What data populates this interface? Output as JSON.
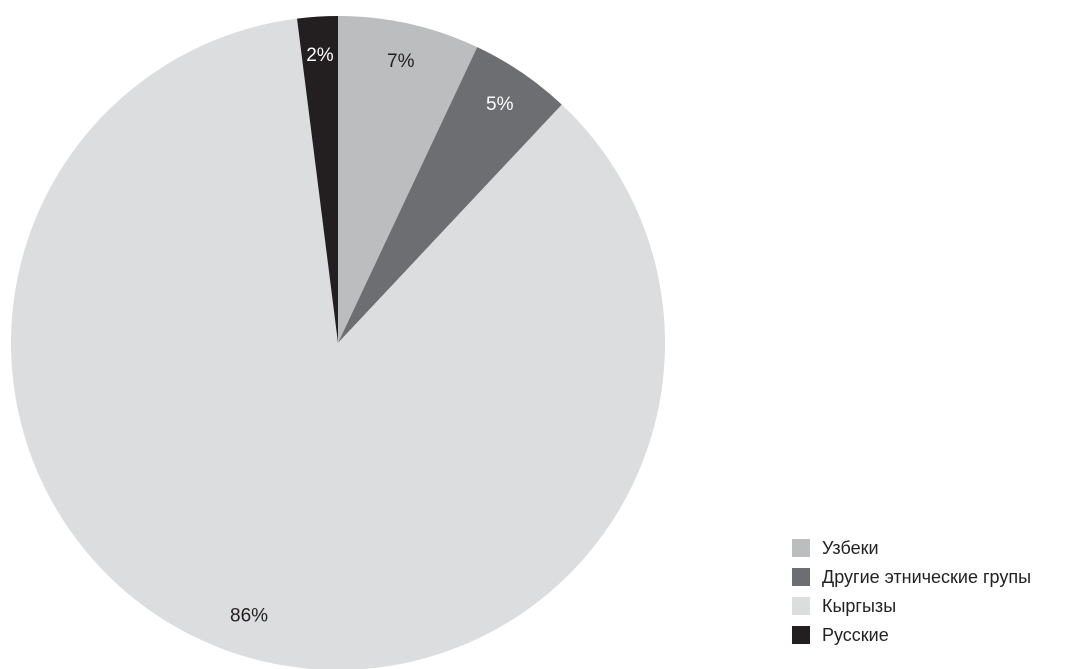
{
  "chart_data": {
    "type": "pie",
    "title": "",
    "start_angle_deg": 0,
    "direction": "clockwise",
    "legend_position": "bottom-right",
    "slices": [
      {
        "name": "Узбеки",
        "value": 7,
        "label": "7%",
        "color": "#bcbdbf"
      },
      {
        "name": "Другие этнические групы",
        "value": 5,
        "label": "5%",
        "color": "#6d6e71"
      },
      {
        "name": "Кыргызы",
        "value": 86,
        "label": "86%",
        "color": "#dcddde"
      },
      {
        "name": "Русские",
        "value": 2,
        "label": "2%",
        "color": "#231f20"
      }
    ]
  }
}
